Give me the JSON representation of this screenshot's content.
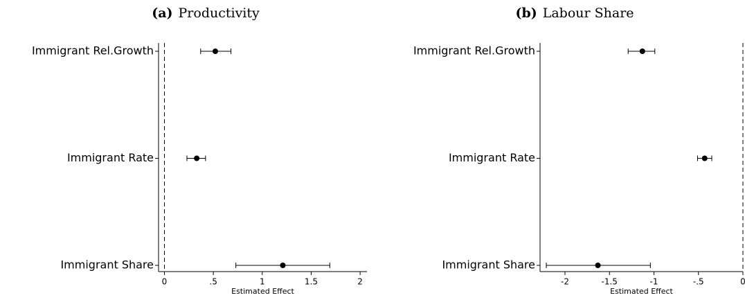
{
  "chart_data": [
    {
      "type": "coefplot",
      "label": "(a)",
      "title": "Productivity",
      "categories": [
        "Immigrant Rel.Growth",
        "Immigrant Rate",
        "Immigrant Share"
      ],
      "values": [
        0.52,
        0.33,
        1.21
      ],
      "lower": [
        0.37,
        0.23,
        0.73
      ],
      "upper": [
        0.68,
        0.42,
        1.69
      ],
      "xlim": [
        -0.06,
        2.07
      ],
      "xticks": [
        0,
        {
          "value": 0.5,
          "label": ".5"
        },
        1,
        1.5,
        2
      ],
      "xlabel": "Estimated Effect",
      "refline": 0,
      "color": "#000000"
    },
    {
      "type": "coefplot",
      "label": "(b)",
      "title": "Labour Share",
      "categories": [
        "Immigrant Rel.Growth",
        "Immigrant Rate",
        "Immigrant Share"
      ],
      "values": [
        -1.13,
        -0.43,
        -1.63
      ],
      "lower": [
        -1.29,
        -0.51,
        -2.21
      ],
      "upper": [
        -0.99,
        -0.35,
        -1.04
      ],
      "xlim": [
        -2.28,
        0
      ],
      "xticks": [
        -2,
        -1.5,
        -1,
        {
          "value": -0.5,
          "label": "-.5"
        },
        0
      ],
      "xlabel": "Estimated Effect",
      "refline": 0,
      "color": "#000000"
    }
  ]
}
